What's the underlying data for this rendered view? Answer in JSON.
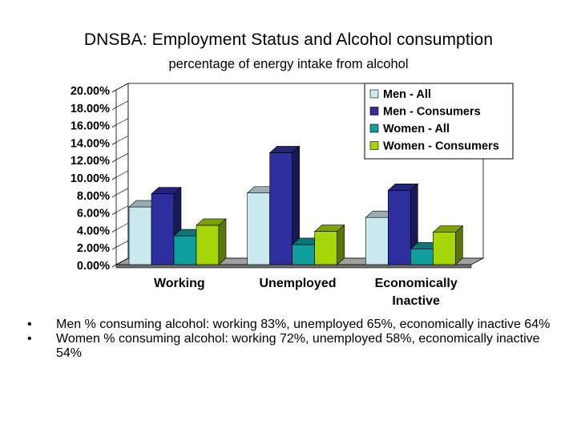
{
  "chart_data": {
    "type": "bar",
    "title": "DNSBA: Employment Status and Alcohol consumption",
    "subtitle": "percentage of energy intake from alcohol",
    "categories": [
      "Working",
      "Unemployed",
      "Economically Inactive"
    ],
    "series": [
      {
        "name": "Men - All",
        "values": [
          6.6,
          8.2,
          5.4
        ],
        "color": "#c9e9ee"
      },
      {
        "name": "Men - Consumers",
        "values": [
          8.1,
          12.8,
          8.5
        ],
        "color": "#2e2e9e"
      },
      {
        "name": "Women - All",
        "values": [
          3.3,
          2.3,
          1.8
        ],
        "color": "#0e9e9e"
      },
      {
        "name": "Women - Consumers",
        "values": [
          4.5,
          3.8,
          3.7
        ],
        "color": "#a6d60a"
      }
    ],
    "ylim": [
      0,
      20
    ],
    "yticks": [
      "0.00%",
      "2.00%",
      "4.00%",
      "6.00%",
      "8.00%",
      "10.00%",
      "12.00%",
      "14.00%",
      "16.00%",
      "18.00%",
      "20.00%"
    ],
    "grid": false,
    "legend_position": "top-right"
  },
  "bullets": [
    {
      "marker": "•",
      "text": "Men % consuming alcohol: working 83%, unemployed 65%, economically inactive 64%"
    },
    {
      "marker": "•",
      "text": "Women % consuming alcohol: working 72%, unemployed 58%, economically inactive 54%"
    }
  ]
}
